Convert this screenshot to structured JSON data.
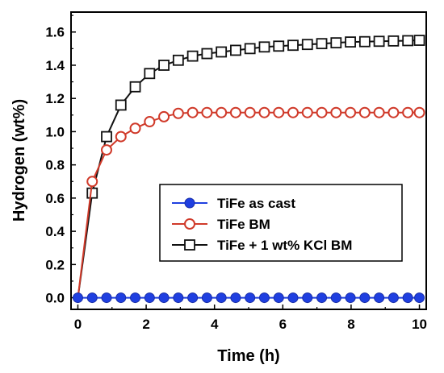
{
  "chart_data": {
    "type": "line",
    "xlabel": "Time (h)",
    "ylabel": "Hydrogen (wt%)",
    "xlim": [
      -0.2,
      10.2
    ],
    "ylim": [
      -0.07,
      1.72
    ],
    "xticks": [
      0,
      2,
      4,
      6,
      8,
      10
    ],
    "yticks": [
      0.0,
      0.2,
      0.4,
      0.6,
      0.8,
      1.0,
      1.2,
      1.4,
      1.6
    ],
    "xtick_labels": [
      "0",
      "2",
      "4",
      "6",
      "8",
      "10"
    ],
    "ytick_labels": [
      "0.0",
      "0.2",
      "0.4",
      "0.6",
      "0.8",
      "1.0",
      "1.2",
      "1.4",
      "1.6"
    ],
    "grid": false,
    "legend_position": "center-right",
    "series": [
      {
        "name": "TiFe as cast",
        "color": "#1f3fe0",
        "marker": "filled-circle",
        "x": [
          0.0,
          0.42,
          0.84,
          1.26,
          1.68,
          2.1,
          2.52,
          2.94,
          3.36,
          3.78,
          4.2,
          4.62,
          5.04,
          5.46,
          5.88,
          6.3,
          6.72,
          7.14,
          7.56,
          7.98,
          8.4,
          8.82,
          9.24,
          9.66,
          10.0
        ],
        "y": [
          0.0,
          0.0,
          0.0,
          0.0,
          0.0,
          0.0,
          0.0,
          0.0,
          0.0,
          0.0,
          0.0,
          0.0,
          0.0,
          0.0,
          0.0,
          0.0,
          0.0,
          0.0,
          0.0,
          0.0,
          0.0,
          0.0,
          0.0,
          0.0,
          0.0
        ]
      },
      {
        "name": "TiFe BM",
        "color": "#d03a2a",
        "marker": "open-circle",
        "x": [
          0.0,
          0.42,
          0.84,
          1.26,
          1.68,
          2.1,
          2.52,
          2.94,
          3.36,
          3.78,
          4.2,
          4.62,
          5.04,
          5.46,
          5.88,
          6.3,
          6.72,
          7.14,
          7.56,
          7.98,
          8.4,
          8.82,
          9.24,
          9.66,
          10.0
        ],
        "y": [
          0.0,
          0.7,
          0.89,
          0.97,
          1.02,
          1.06,
          1.09,
          1.11,
          1.115,
          1.115,
          1.115,
          1.115,
          1.115,
          1.115,
          1.115,
          1.115,
          1.115,
          1.115,
          1.115,
          1.115,
          1.115,
          1.115,
          1.115,
          1.115,
          1.115
        ]
      },
      {
        "name": "TiFe + 1 wt% KCl BM",
        "color": "#111111",
        "marker": "open-square",
        "x": [
          0.0,
          0.42,
          0.84,
          1.26,
          1.68,
          2.1,
          2.52,
          2.94,
          3.36,
          3.78,
          4.2,
          4.62,
          5.04,
          5.46,
          5.88,
          6.3,
          6.72,
          7.14,
          7.56,
          7.98,
          8.4,
          8.82,
          9.24,
          9.66,
          10.0
        ],
        "y": [
          0.0,
          0.63,
          0.97,
          1.16,
          1.27,
          1.35,
          1.4,
          1.43,
          1.455,
          1.47,
          1.48,
          1.49,
          1.5,
          1.51,
          1.515,
          1.52,
          1.525,
          1.53,
          1.535,
          1.54,
          1.542,
          1.544,
          1.546,
          1.548,
          1.55
        ]
      }
    ]
  }
}
